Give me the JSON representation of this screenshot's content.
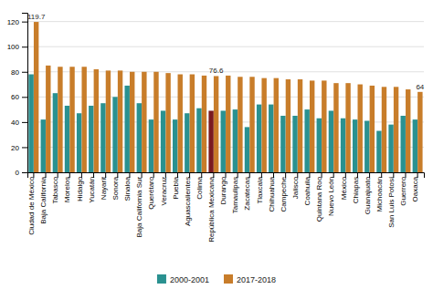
{
  "chart_data": {
    "type": "bar",
    "categories": [
      "Ciudad de México",
      "Baja California",
      "Tabasco",
      "Morelos",
      "Hidalgo",
      "Yucatán",
      "Nayarit",
      "Sonora",
      "Sinaloa",
      "Baja California Sur",
      "Querétaro",
      "Veracruz",
      "Puebla",
      "Aguascalientes",
      "Colima",
      "República Mexicana",
      "Durango",
      "Tamaulipas",
      "Zacatecas",
      "Tlaxcala",
      "Chihuahua",
      "Campeche",
      "Jalisco",
      "Coahuila",
      "Quintana Roo",
      "Nuevo León",
      "México",
      "Chiapas",
      "Guanajuato",
      "Michoacán",
      "San Luis Potosí",
      "Guerrero",
      "Oaxaca"
    ],
    "series": [
      {
        "name": "2000-2001",
        "color": "#2a9190",
        "colors": [
          "#2a9190",
          "#2a9190",
          "#2a9190",
          "#2a9190",
          "#2a9190",
          "#2a9190",
          "#2a9190",
          "#2a9190",
          "#2a9190",
          "#2a9190",
          "#2a9190",
          "#2a9190",
          "#2a9190",
          "#2a9190",
          "#2a9190",
          "#7a1a20",
          "#2a9190",
          "#2a9190",
          "#2a9190",
          "#2a9190",
          "#2a9190",
          "#2a9190",
          "#2a9190",
          "#2a9190",
          "#2a9190",
          "#2a9190",
          "#2a9190",
          "#2a9190",
          "#2a9190",
          "#2a9190",
          "#2a9190",
          "#2a9190",
          "#2a9190"
        ],
        "values": [
          78,
          42,
          63,
          53,
          47,
          53,
          55,
          60,
          69,
          55,
          42,
          49,
          42,
          47,
          51,
          49,
          49,
          50,
          36,
          54,
          54,
          45,
          45,
          50,
          43,
          49,
          43,
          42,
          41,
          33,
          38,
          45,
          42
        ]
      },
      {
        "name": "2017-2018",
        "color": "#c87d2a",
        "values": [
          119.7,
          85,
          84,
          84,
          84,
          82,
          81,
          81,
          80,
          80,
          80,
          79,
          78,
          78,
          77,
          76.6,
          77,
          76,
          76,
          75,
          75,
          74,
          74,
          73,
          73,
          71,
          71,
          70,
          69,
          68,
          68,
          66,
          64
        ],
        "value_labels": [
          "119.7",
          null,
          null,
          null,
          null,
          null,
          null,
          null,
          null,
          null,
          null,
          null,
          null,
          null,
          null,
          "76.6",
          null,
          null,
          null,
          null,
          null,
          null,
          null,
          null,
          null,
          null,
          null,
          null,
          null,
          null,
          null,
          null,
          "64"
        ]
      }
    ],
    "ylim": [
      0,
      127
    ],
    "yticks": [
      0,
      20,
      40,
      60,
      80,
      100,
      120
    ],
    "grid": true,
    "legend": "bottom"
  }
}
